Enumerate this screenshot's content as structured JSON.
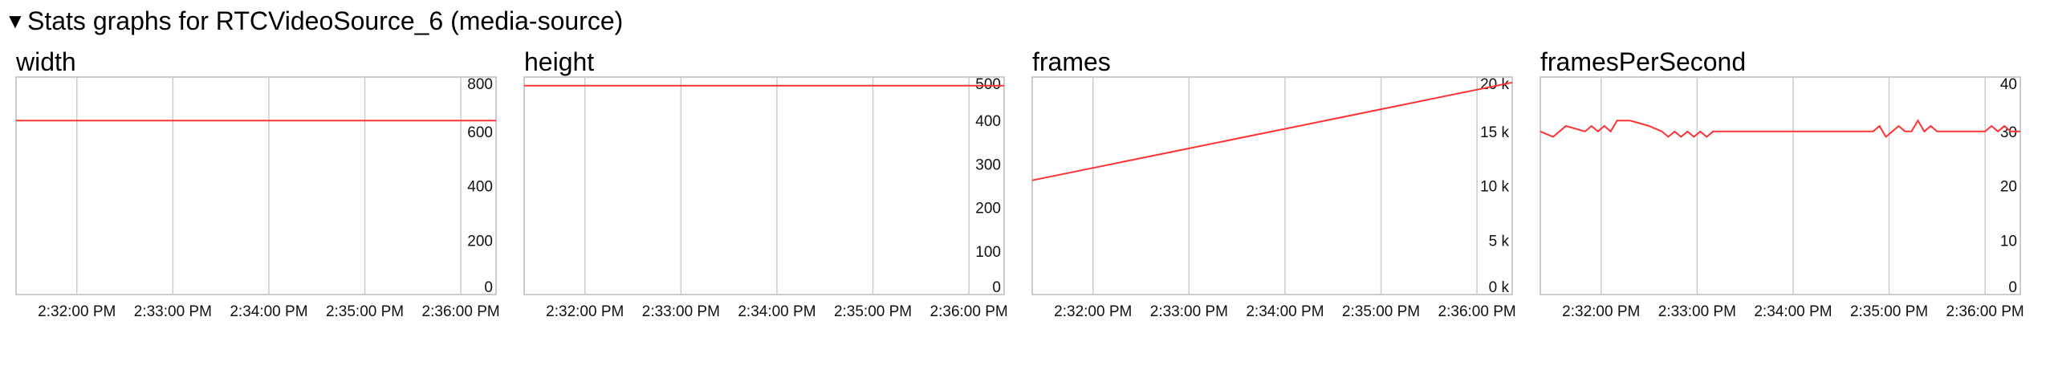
{
  "section": {
    "toggle_glyph": "▼",
    "title": "Stats graphs for RTCVideoSource_6 (media-source)"
  },
  "colors": {
    "series": "#ff3333",
    "grid": "#cccccc",
    "frame": "#bbbbbb"
  },
  "x_ticks": [
    "2:32:00 PM",
    "2:33:00 PM",
    "2:34:00 PM",
    "2:35:00 PM",
    "2:36:00 PM"
  ],
  "chart_data": [
    {
      "type": "line",
      "title": "width",
      "xlabel": "",
      "ylabel": "",
      "grid": true,
      "ylim": [
        0,
        800
      ],
      "y_ticks": [
        {
          "value": 0,
          "label": "0"
        },
        {
          "value": 200,
          "label": "200"
        },
        {
          "value": 400,
          "label": "400"
        },
        {
          "value": 600,
          "label": "600"
        },
        {
          "value": 800,
          "label": "800"
        }
      ],
      "x_ticks": [
        "2:32:00 PM",
        "2:33:00 PM",
        "2:34:00 PM",
        "2:35:00 PM",
        "2:36:00 PM"
      ],
      "series": [
        {
          "x": [
            "2:31:22 PM",
            "2:36:22 PM"
          ],
          "y": [
            640,
            640
          ]
        }
      ]
    },
    {
      "type": "line",
      "title": "height",
      "xlabel": "",
      "ylabel": "",
      "grid": true,
      "ylim": [
        0,
        500
      ],
      "y_ticks": [
        {
          "value": 0,
          "label": "0"
        },
        {
          "value": 100,
          "label": "100"
        },
        {
          "value": 200,
          "label": "200"
        },
        {
          "value": 300,
          "label": "300"
        },
        {
          "value": 400,
          "label": "400"
        },
        {
          "value": 500,
          "label": "500"
        }
      ],
      "x_ticks": [
        "2:32:00 PM",
        "2:33:00 PM",
        "2:34:00 PM",
        "2:35:00 PM",
        "2:36:00 PM"
      ],
      "series": [
        {
          "x": [
            "2:31:22 PM",
            "2:36:22 PM"
          ],
          "y": [
            480,
            480
          ]
        }
      ]
    },
    {
      "type": "line",
      "title": "frames",
      "xlabel": "",
      "ylabel": "",
      "grid": true,
      "ylim": [
        0,
        20000
      ],
      "y_ticks": [
        {
          "value": 0,
          "label": "0 k"
        },
        {
          "value": 5000,
          "label": "5 k"
        },
        {
          "value": 10000,
          "label": "10 k"
        },
        {
          "value": 15000,
          "label": "15 k"
        },
        {
          "value": 20000,
          "label": "20 k"
        }
      ],
      "x_ticks": [
        "2:32:00 PM",
        "2:33:00 PM",
        "2:34:00 PM",
        "2:35:00 PM",
        "2:36:00 PM"
      ],
      "series": [
        {
          "x": [
            "2:31:22 PM",
            "2:36:22 PM"
          ],
          "y": [
            10500,
            19500
          ]
        }
      ]
    },
    {
      "type": "line",
      "title": "framesPerSecond",
      "xlabel": "",
      "ylabel": "",
      "grid": true,
      "ylim": [
        0,
        40
      ],
      "y_ticks": [
        {
          "value": 0,
          "label": "0"
        },
        {
          "value": 10,
          "label": "10"
        },
        {
          "value": 20,
          "label": "20"
        },
        {
          "value": 30,
          "label": "30"
        },
        {
          "value": 40,
          "label": "40"
        }
      ],
      "x_ticks": [
        "2:32:00 PM",
        "2:33:00 PM",
        "2:34:00 PM",
        "2:35:00 PM",
        "2:36:00 PM"
      ],
      "series": [
        {
          "x": [
            "2:31:22 PM",
            "2:31:30 PM",
            "2:31:34 PM",
            "2:31:38 PM",
            "2:31:50 PM",
            "2:31:54 PM",
            "2:31:58 PM",
            "2:32:02 PM",
            "2:32:06 PM",
            "2:32:10 PM",
            "2:32:14 PM",
            "2:32:18 PM",
            "2:32:30 PM",
            "2:32:38 PM",
            "2:32:42 PM",
            "2:32:46 PM",
            "2:32:50 PM",
            "2:32:54 PM",
            "2:32:58 PM",
            "2:33:02 PM",
            "2:33:06 PM",
            "2:33:10 PM",
            "2:33:14 PM",
            "2:33:30 PM",
            "2:34:50 PM",
            "2:34:54 PM",
            "2:34:58 PM",
            "2:35:02 PM",
            "2:35:06 PM",
            "2:35:10 PM",
            "2:35:14 PM",
            "2:35:18 PM",
            "2:35:22 PM",
            "2:35:26 PM",
            "2:35:30 PM",
            "2:35:34 PM",
            "2:35:38 PM",
            "2:35:42 PM",
            "2:35:46 PM",
            "2:36:00 PM",
            "2:36:04 PM",
            "2:36:08 PM",
            "2:36:12 PM",
            "2:36:16 PM",
            "2:36:22 PM"
          ],
          "y": [
            30,
            29,
            30,
            31,
            30,
            31,
            30,
            31,
            30,
            32,
            32,
            32,
            31,
            30,
            29,
            30,
            29,
            30,
            29,
            30,
            29,
            30,
            30,
            30,
            30,
            31,
            29,
            30,
            31,
            30,
            30,
            32,
            30,
            31,
            30,
            30,
            30,
            30,
            30,
            30,
            31,
            30,
            31,
            30,
            30
          ]
        }
      ]
    }
  ]
}
